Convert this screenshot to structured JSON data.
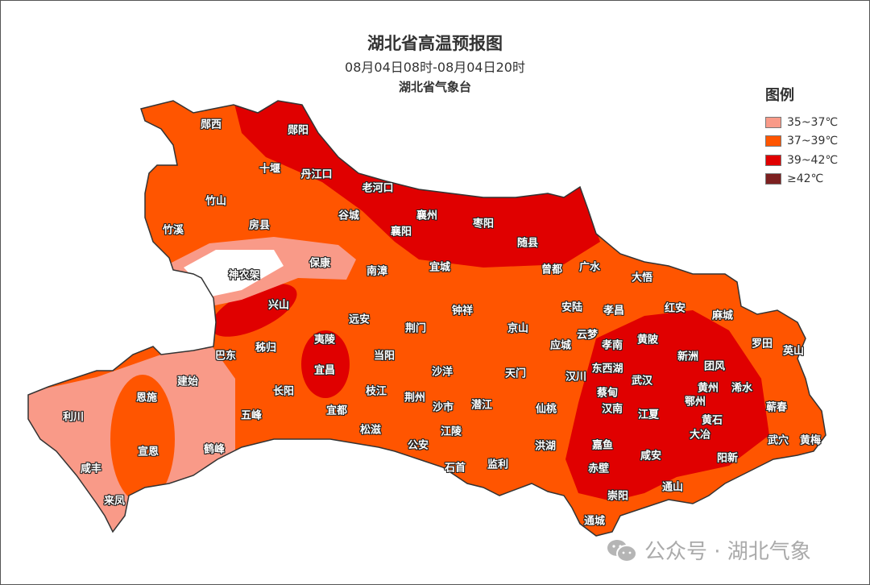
{
  "header": {
    "title": "湖北省高温预报图",
    "time_range": "08月04日08时-08月04日20时",
    "issuer": "湖北省气象台"
  },
  "legend": {
    "title": "图例",
    "items": [
      {
        "label": "35~37℃",
        "color": "#f99a88"
      },
      {
        "label": "37~39℃",
        "color": "#ff5500"
      },
      {
        "label": "39~42℃",
        "color": "#e00000"
      },
      {
        "label": "≥42℃",
        "color": "#7d2020"
      }
    ]
  },
  "colors": {
    "below_35": "#ffffff",
    "boundary": "#555555"
  },
  "places": [
    "郧西",
    "郧阳",
    "十堰",
    "丹江口",
    "老河口",
    "竹山",
    "谷城",
    "襄州",
    "枣阳",
    "竹溪",
    "房县",
    "襄阳",
    "随县",
    "神农架",
    "保康",
    "南漳",
    "宜城",
    "曾都",
    "广水",
    "大悟",
    "兴山",
    "远安",
    "钟祥",
    "安陆",
    "孝昌",
    "红安",
    "麻城",
    "荆门",
    "京山",
    "云梦",
    "巴东",
    "秭归",
    "夷陵",
    "当阳",
    "应城",
    "孝南",
    "黄陂",
    "新洲",
    "罗田",
    "英山",
    "宜昌",
    "沙洋",
    "天门",
    "汉川",
    "东西湖",
    "武汉",
    "团风",
    "黄州",
    "浠水",
    "建始",
    "恩施",
    "长阳",
    "枝江",
    "荆州",
    "蔡甸",
    "鄂州",
    "宜都",
    "沙市",
    "潜江",
    "仙桃",
    "汉南",
    "江夏",
    "黄石",
    "蕲春",
    "利川",
    "五峰",
    "松滋",
    "江陵",
    "大冶",
    "武穴",
    "黄梅",
    "宣恩",
    "鹤峰",
    "公安",
    "洪湖",
    "嘉鱼",
    "阳新",
    "咸丰",
    "石首",
    "监利",
    "赤壁",
    "咸安",
    "通山",
    "来凤",
    "崇阳",
    "通城"
  ],
  "watermark": {
    "icon": "wechat-icon",
    "text": "公众号 · 湖北气象"
  }
}
